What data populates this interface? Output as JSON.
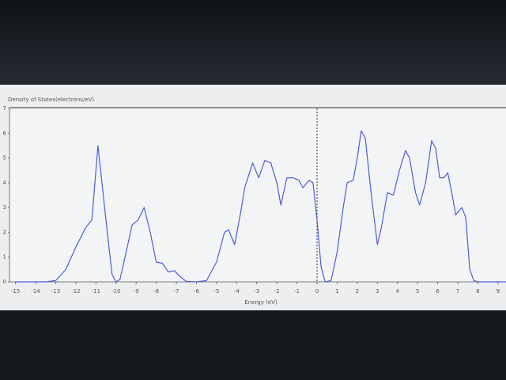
{
  "chart_data": {
    "type": "line",
    "ylabel": "Density of States(electrons/eV)",
    "xlabel": "Energy (eV)",
    "x": [
      -15,
      -13.5,
      -13,
      -12.5,
      -12,
      -11.5,
      -11.2,
      -10.9,
      -10.5,
      -10.2,
      -10,
      -9.8,
      -9.5,
      -9.2,
      -8.9,
      -8.6,
      -8.3,
      -8,
      -7.7,
      -7.4,
      -7.1,
      -6.8,
      -6.5,
      -6,
      -5.5,
      -5,
      -4.6,
      -4.4,
      -4.1,
      -3.8,
      -3.6,
      -3.2,
      -2.9,
      -2.6,
      -2.3,
      -2,
      -1.8,
      -1.5,
      -1.2,
      -0.9,
      -0.7,
      -0.4,
      -0.2,
      0,
      0.2,
      0.4,
      0.7,
      1,
      1.3,
      1.5,
      1.8,
      2,
      2.2,
      2.4,
      2.7,
      3,
      3.2,
      3.5,
      3.8,
      4.1,
      4.4,
      4.6,
      4.9,
      5.1,
      5.4,
      5.7,
      5.9,
      6.1,
      6.3,
      6.5,
      6.7,
      6.9,
      7.2,
      7.4,
      7.6,
      7.8,
      8,
      9.4
    ],
    "values": [
      0,
      0,
      0.05,
      0.5,
      1.4,
      2.2,
      2.5,
      5.5,
      2.5,
      0.3,
      0,
      0.1,
      1.2,
      2.3,
      2.5,
      3.0,
      2.0,
      0.8,
      0.75,
      0.4,
      0.45,
      0.2,
      0.02,
      0,
      0.05,
      0.8,
      2.0,
      2.1,
      1.5,
      2.8,
      3.8,
      4.8,
      4.2,
      4.9,
      4.8,
      4.0,
      3.1,
      4.2,
      4.2,
      4.1,
      3.8,
      4.1,
      4.0,
      2.5,
      0.6,
      0,
      0.05,
      1.2,
      3.0,
      4.0,
      4.1,
      5.0,
      6.1,
      5.8,
      3.5,
      1.5,
      2.2,
      3.6,
      3.5,
      4.5,
      5.3,
      5.0,
      3.6,
      3.1,
      4.0,
      5.7,
      5.4,
      4.2,
      4.2,
      4.4,
      3.6,
      2.7,
      3.0,
      2.6,
      0.5,
      0.05,
      0,
      0
    ],
    "color": "#4c5fd6",
    "xlim": [
      -15.3,
      9.4
    ],
    "ylim": [
      0,
      7
    ],
    "xticks": [
      -15,
      -14,
      -13,
      -12,
      -11,
      -10,
      -9,
      -8,
      -7,
      -6,
      -5,
      -4,
      -3,
      -2,
      -1,
      0,
      1,
      2,
      3,
      4,
      5,
      6,
      7,
      8,
      9
    ],
    "yticks": [
      0,
      1,
      2,
      3,
      4,
      5,
      6,
      7
    ],
    "vline": 0
  }
}
